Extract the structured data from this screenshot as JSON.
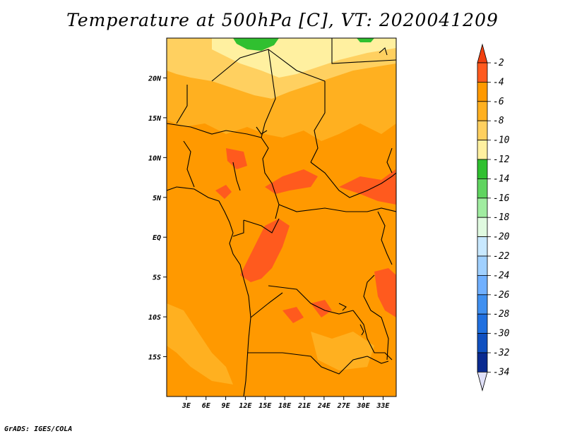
{
  "title": "Temperature at 500hPa [C], VT: 2020041209",
  "credit": "GrADS: IGES/COLA",
  "map": {
    "lon_labels": [
      "3E",
      "6E",
      "9E",
      "12E",
      "15E",
      "18E",
      "21E",
      "24E",
      "27E",
      "30E",
      "33E"
    ],
    "lon_values": [
      3,
      6,
      9,
      12,
      15,
      18,
      21,
      24,
      27,
      30,
      33
    ],
    "lat_labels": [
      "20N",
      "15N",
      "10N",
      "5N",
      "EQ",
      "5S",
      "10S",
      "15S"
    ],
    "lat_values": [
      20,
      15,
      10,
      5,
      0,
      -5,
      -10,
      -15
    ],
    "lon_range": [
      0,
      35
    ],
    "lat_range": [
      -20,
      25
    ]
  },
  "colorbar": {
    "labels": [
      "-2",
      "-4",
      "-6",
      "-8",
      "-10",
      "-12",
      "-14",
      "-16",
      "-18",
      "-20",
      "-22",
      "-24",
      "-26",
      "-28",
      "-30",
      "-32",
      "-34"
    ],
    "colors": [
      "#ff5a1e",
      "#ff9900",
      "#ffb020",
      "#ffd060",
      "#fff0a0",
      "#30c030",
      "#60d460",
      "#a0eca0",
      "#e0fae0",
      "#c8e8ff",
      "#a0d0ff",
      "#70b0ff",
      "#4090f0",
      "#2070e0",
      "#1050c0",
      "#0a2a90",
      "#e0e0f8"
    ],
    "top_color": "#f04010",
    "bottom_color": "#e0e0f8"
  }
}
